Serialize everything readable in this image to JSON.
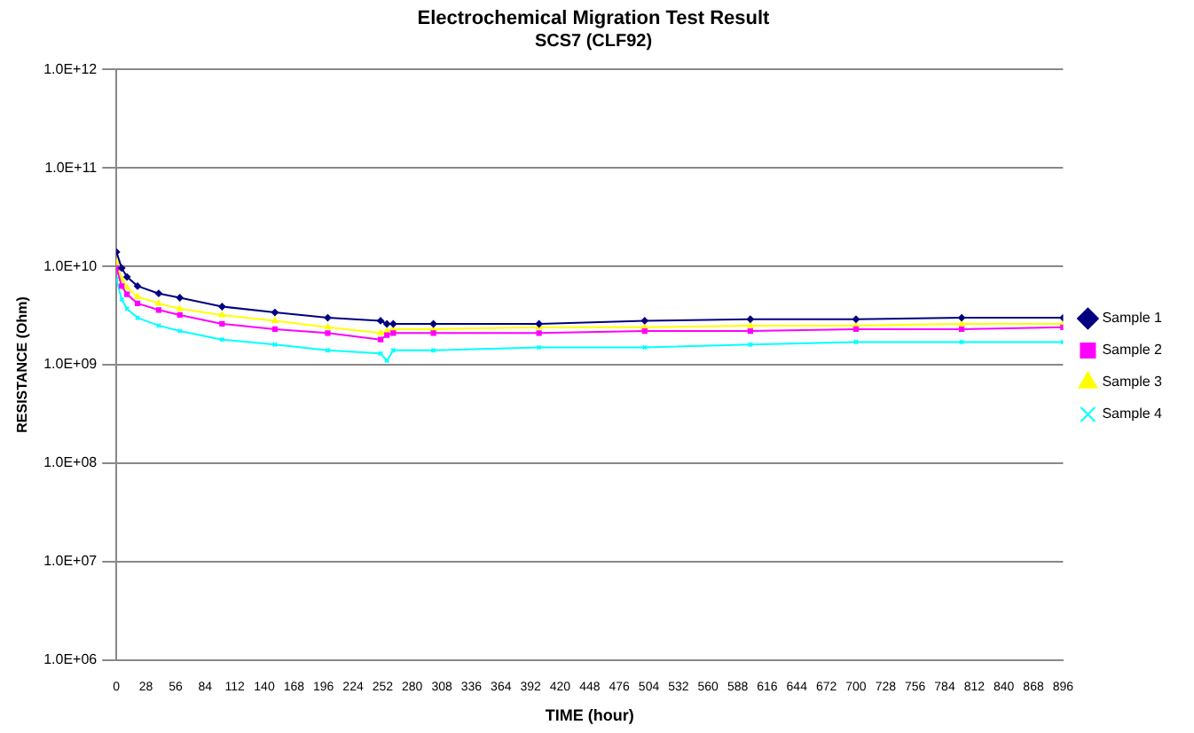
{
  "chart_data": {
    "type": "line",
    "title": "Electrochemical Migration Test Result",
    "subtitle": "SCS7 (CLF92)",
    "xlabel": "TIME (hour)",
    "ylabel": "RESISTANCE (Ohm)",
    "log": "y",
    "grid": "y",
    "legend": "right",
    "line_style": "solid",
    "x": [
      0,
      5,
      10,
      20,
      40,
      60,
      100,
      150,
      200,
      250,
      256,
      262,
      300,
      400,
      500,
      600,
      700,
      800,
      896
    ],
    "xlim": [
      0,
      896
    ],
    "xticks": [
      0,
      28,
      56,
      84,
      112,
      140,
      168,
      196,
      224,
      252,
      280,
      308,
      336,
      364,
      392,
      420,
      448,
      476,
      504,
      532,
      560,
      588,
      616,
      644,
      672,
      700,
      728,
      756,
      784,
      812,
      840,
      868,
      896
    ],
    "ylim": [
      1000000.0,
      1000000000000.0
    ],
    "yticks": [
      {
        "value": 1000000000000.0,
        "label": "1.0E+12"
      },
      {
        "value": 100000000000.0,
        "label": "1.0E+11"
      },
      {
        "value": 10000000000.0,
        "label": "1.0E+10"
      },
      {
        "value": 1000000000.0,
        "label": "1.0E+09"
      },
      {
        "value": 100000000.0,
        "label": "1.0E+08"
      },
      {
        "value": 10000000.0,
        "label": "1.0E+07"
      },
      {
        "value": 1000000.0,
        "label": "1.0E+06"
      }
    ],
    "series": [
      {
        "name": "Sample 1",
        "color": "#000080",
        "marker": "diamond",
        "values": [
          14000000000.0,
          9600000000.0,
          7800000000.0,
          6300000000.0,
          5300000000.0,
          4800000000.0,
          3900000000.0,
          3400000000.0,
          3000000000.0,
          2800000000.0,
          2600000000.0,
          2600000000.0,
          2600000000.0,
          2600000000.0,
          2800000000.0,
          2900000000.0,
          2900000000.0,
          3000000000.0,
          3000000000.0
        ]
      },
      {
        "name": "Sample 2",
        "color": "#ff00ff",
        "marker": "square",
        "values": [
          9600000000.0,
          6300000000.0,
          5200000000.0,
          4200000000.0,
          3600000000.0,
          3200000000.0,
          2600000000.0,
          2300000000.0,
          2100000000.0,
          1800000000.0,
          2000000000.0,
          2100000000.0,
          2100000000.0,
          2100000000.0,
          2200000000.0,
          2200000000.0,
          2300000000.0,
          2300000000.0,
          2400000000.0
        ]
      },
      {
        "name": "Sample 3",
        "color": "#ffff00",
        "marker": "triangle",
        "values": [
          11000000000.0,
          7400000000.0,
          6100000000.0,
          4900000000.0,
          4200000000.0,
          3700000000.0,
          3200000000.0,
          2800000000.0,
          2400000000.0,
          2100000000.0,
          2200000000.0,
          2300000000.0,
          2300000000.0,
          2400000000.0,
          2400000000.0,
          2500000000.0,
          2500000000.0,
          2600000000.0,
          2600000000.0
        ]
      },
      {
        "name": "Sample 4",
        "color": "#00ffff",
        "marker": "cross",
        "values": [
          7400000000.0,
          4600000000.0,
          3700000000.0,
          3000000000.0,
          2500000000.0,
          2200000000.0,
          1800000000.0,
          1600000000.0,
          1400000000.0,
          1300000000.0,
          1100000000.0,
          1400000000.0,
          1400000000.0,
          1500000000.0,
          1500000000.0,
          1600000000.0,
          1700000000.0,
          1700000000.0,
          1700000000.0
        ]
      }
    ]
  }
}
